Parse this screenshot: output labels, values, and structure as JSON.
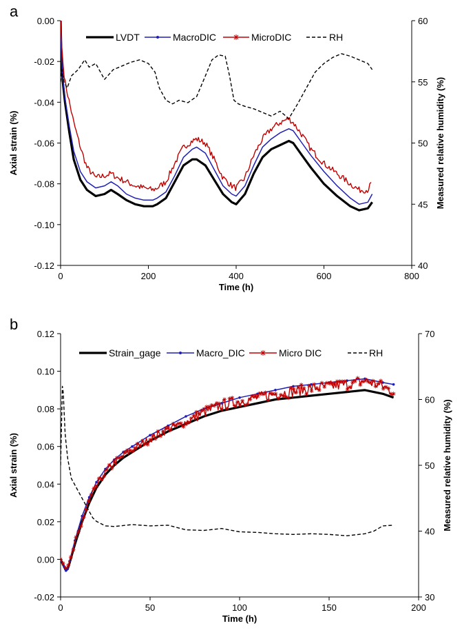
{
  "chart_data": [
    {
      "panel_label": "a",
      "type": "line",
      "xlabel": "Time (h)",
      "ylabel": "Axial strain (%)",
      "y2label": "Measured relative humidity (%)",
      "xlim": [
        0,
        800
      ],
      "ylim": [
        -0.12,
        0.0
      ],
      "y2lim": [
        40,
        60
      ],
      "xticks": [
        0,
        200,
        400,
        600,
        800
      ],
      "yticks": [
        -0.12,
        -0.1,
        -0.08,
        -0.06,
        -0.04,
        -0.02,
        0.0
      ],
      "y2ticks": [
        40,
        45,
        50,
        55,
        60
      ],
      "xtick_labels": [
        "0",
        "200",
        "400",
        "600",
        "800"
      ],
      "ytick_labels": [
        "-0.12",
        "-0.10",
        "-0.08",
        "-0.06",
        "-0.04",
        "-0.02",
        "0.00"
      ],
      "y2tick_labels": [
        "40",
        "45",
        "50",
        "55",
        "60"
      ],
      "grid": false,
      "legend_position": "top",
      "series": [
        {
          "name": "LVDT",
          "axis": "left",
          "color": "#000000",
          "style": "thick",
          "x": [
            0,
            2,
            5,
            10,
            20,
            30,
            45,
            60,
            80,
            100,
            115,
            130,
            150,
            170,
            190,
            210,
            220,
            240,
            260,
            280,
            300,
            310,
            330,
            350,
            370,
            390,
            400,
            420,
            440,
            460,
            480,
            500,
            520,
            530,
            550,
            570,
            600,
            630,
            660,
            680,
            700,
            710
          ],
          "y": [
            0.0,
            -0.02,
            -0.03,
            -0.04,
            -0.055,
            -0.068,
            -0.078,
            -0.083,
            -0.086,
            -0.085,
            -0.083,
            -0.085,
            -0.088,
            -0.09,
            -0.091,
            -0.091,
            -0.09,
            -0.087,
            -0.079,
            -0.071,
            -0.068,
            -0.068,
            -0.071,
            -0.078,
            -0.085,
            -0.089,
            -0.09,
            -0.085,
            -0.075,
            -0.067,
            -0.063,
            -0.061,
            -0.059,
            -0.06,
            -0.066,
            -0.072,
            -0.08,
            -0.086,
            -0.091,
            -0.093,
            -0.092,
            -0.089
          ]
        },
        {
          "name": "MacroDIC",
          "axis": "left",
          "color": "#1f1fb4",
          "style": "thin",
          "x": [
            0,
            2,
            5,
            10,
            20,
            30,
            45,
            60,
            80,
            100,
            115,
            130,
            150,
            170,
            190,
            210,
            220,
            240,
            260,
            280,
            300,
            310,
            330,
            350,
            370,
            390,
            400,
            420,
            440,
            460,
            480,
            500,
            520,
            530,
            550,
            570,
            600,
            630,
            660,
            680,
            700,
            710
          ],
          "y": [
            0.0,
            -0.018,
            -0.028,
            -0.038,
            -0.052,
            -0.064,
            -0.074,
            -0.079,
            -0.082,
            -0.081,
            -0.079,
            -0.081,
            -0.085,
            -0.087,
            -0.088,
            -0.088,
            -0.087,
            -0.084,
            -0.076,
            -0.067,
            -0.063,
            -0.062,
            -0.065,
            -0.073,
            -0.081,
            -0.085,
            -0.086,
            -0.081,
            -0.071,
            -0.062,
            -0.058,
            -0.055,
            -0.053,
            -0.054,
            -0.06,
            -0.066,
            -0.074,
            -0.081,
            -0.087,
            -0.09,
            -0.089,
            -0.085
          ]
        },
        {
          "name": "MicroDIC",
          "axis": "left",
          "color": "#c00000",
          "style": "noisy",
          "x": [
            0,
            2,
            5,
            10,
            20,
            30,
            45,
            60,
            80,
            100,
            115,
            130,
            150,
            170,
            190,
            210,
            220,
            240,
            260,
            280,
            300,
            310,
            330,
            350,
            370,
            390,
            400,
            420,
            440,
            460,
            480,
            500,
            520,
            530,
            550,
            570,
            600,
            630,
            660,
            680,
            700,
            710
          ],
          "y": [
            0.0,
            -0.01,
            -0.02,
            -0.03,
            -0.04,
            -0.05,
            -0.062,
            -0.072,
            -0.077,
            -0.076,
            -0.075,
            -0.077,
            -0.079,
            -0.081,
            -0.082,
            -0.083,
            -0.082,
            -0.079,
            -0.07,
            -0.062,
            -0.059,
            -0.058,
            -0.06,
            -0.068,
            -0.077,
            -0.081,
            -0.082,
            -0.077,
            -0.066,
            -0.058,
            -0.053,
            -0.05,
            -0.048,
            -0.05,
            -0.056,
            -0.063,
            -0.07,
            -0.075,
            -0.08,
            -0.083,
            -0.083,
            -0.079
          ]
        },
        {
          "name": "RH",
          "axis": "right",
          "color": "#000000",
          "style": "dashed",
          "x": [
            0,
            3,
            8,
            15,
            25,
            40,
            55,
            65,
            80,
            100,
            120,
            140,
            160,
            180,
            200,
            215,
            225,
            240,
            255,
            270,
            290,
            310,
            330,
            345,
            360,
            375,
            385,
            395,
            405,
            420,
            440,
            460,
            480,
            500,
            520,
            540,
            560,
            580,
            600,
            620,
            640,
            660,
            680,
            700,
            710
          ],
          "y": [
            55,
            56,
            55,
            54.5,
            55.5,
            56,
            56.8,
            56.2,
            56.5,
            55.2,
            56,
            56.3,
            56.6,
            56.8,
            56.5,
            55.8,
            54.5,
            53.5,
            53.2,
            53.5,
            53.3,
            53.8,
            55.5,
            56.8,
            57.2,
            57.1,
            55.5,
            53.5,
            53.2,
            53,
            52.8,
            52.5,
            52.2,
            52.6,
            52,
            53.2,
            54.5,
            55.8,
            56.5,
            57,
            57.3,
            57.1,
            56.8,
            56.5,
            56
          ]
        }
      ]
    },
    {
      "panel_label": "b",
      "type": "line",
      "xlabel": "Time (h)",
      "ylabel": "Axial strain (%)",
      "y2label": "Measured relative humidity  (%)",
      "xlim": [
        0,
        200
      ],
      "ylim": [
        -0.02,
        0.12
      ],
      "y2lim": [
        30,
        70
      ],
      "xticks": [
        0,
        50,
        100,
        150,
        200
      ],
      "yticks": [
        -0.02,
        0.0,
        0.02,
        0.04,
        0.06,
        0.08,
        0.1,
        0.12
      ],
      "y2ticks": [
        30,
        40,
        50,
        60,
        70
      ],
      "xtick_labels": [
        "0",
        "50",
        "100",
        "150",
        "200"
      ],
      "ytick_labels": [
        "-0.02",
        "0.00",
        "0.02",
        "0.04",
        "0.06",
        "0.08",
        "0.10",
        "0.12"
      ],
      "y2tick_labels": [
        "30",
        "40",
        "50",
        "60",
        "70"
      ],
      "grid": false,
      "legend_position": "top",
      "series": [
        {
          "name": "Strain_gage",
          "axis": "left",
          "color": "#000000",
          "style": "thick",
          "x": [
            0,
            2,
            3,
            4,
            5,
            8,
            12,
            16,
            20,
            25,
            30,
            35,
            40,
            50,
            60,
            70,
            80,
            90,
            100,
            110,
            120,
            130,
            140,
            150,
            160,
            170,
            180,
            186
          ],
          "y": [
            0.0,
            -0.004,
            -0.006,
            -0.005,
            -0.002,
            0.008,
            0.02,
            0.03,
            0.038,
            0.045,
            0.05,
            0.054,
            0.057,
            0.063,
            0.068,
            0.072,
            0.076,
            0.079,
            0.081,
            0.083,
            0.085,
            0.086,
            0.087,
            0.088,
            0.089,
            0.09,
            0.088,
            0.086
          ]
        },
        {
          "name": "Macro_DIC",
          "axis": "left",
          "color": "#1f1fb4",
          "style": "thin-marker",
          "x": [
            0,
            2,
            3,
            4,
            5,
            8,
            12,
            16,
            20,
            25,
            30,
            35,
            40,
            50,
            60,
            70,
            80,
            90,
            100,
            110,
            120,
            130,
            140,
            150,
            160,
            170,
            180,
            186
          ],
          "y": [
            0.0,
            -0.004,
            -0.006,
            -0.005,
            -0.001,
            0.01,
            0.023,
            0.033,
            0.041,
            0.048,
            0.053,
            0.057,
            0.06,
            0.066,
            0.071,
            0.076,
            0.08,
            0.083,
            0.086,
            0.088,
            0.09,
            0.092,
            0.093,
            0.094,
            0.095,
            0.096,
            0.094,
            0.093
          ]
        },
        {
          "name": "Micro DIC",
          "axis": "left",
          "color": "#c00000",
          "style": "noisy-star",
          "x": [
            0,
            2,
            3,
            4,
            5,
            8,
            12,
            16,
            20,
            25,
            30,
            35,
            40,
            50,
            60,
            70,
            80,
            90,
            100,
            110,
            120,
            130,
            140,
            150,
            160,
            170,
            180,
            186
          ],
          "y": [
            0.0,
            -0.003,
            -0.005,
            -0.004,
            -0.001,
            0.008,
            0.02,
            0.031,
            0.039,
            0.046,
            0.051,
            0.055,
            0.058,
            0.064,
            0.069,
            0.073,
            0.078,
            0.082,
            0.084,
            0.086,
            0.088,
            0.089,
            0.091,
            0.092,
            0.093,
            0.095,
            0.092,
            0.089
          ]
        },
        {
          "name": "RH",
          "axis": "right",
          "color": "#000000",
          "style": "dashed",
          "x": [
            0,
            0.5,
            1,
            1.5,
            2,
            2.5,
            3,
            4,
            5,
            6,
            8,
            10,
            12,
            14,
            16,
            18,
            20,
            25,
            30,
            40,
            50,
            60,
            70,
            80,
            90,
            100,
            110,
            120,
            130,
            140,
            150,
            160,
            170,
            175,
            180,
            186
          ],
          "y": [
            50,
            56,
            62,
            61,
            58,
            55,
            53.5,
            51,
            49.5,
            48,
            47,
            46,
            45,
            44,
            43,
            42,
            41.5,
            40.8,
            40.7,
            41,
            40.8,
            40.9,
            40.2,
            40.1,
            40.4,
            39.9,
            39.8,
            39.6,
            39.5,
            39.6,
            39.5,
            39.3,
            39.6,
            40,
            40.8,
            40.9
          ]
        }
      ]
    }
  ]
}
